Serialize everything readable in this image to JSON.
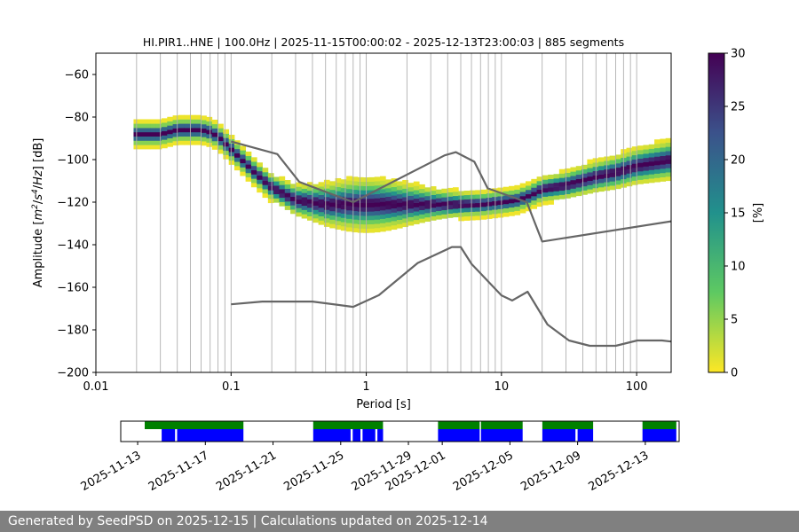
{
  "chart_data": [
    {
      "type": "heatmap",
      "title": "HI.PIR1..HNE | 100.0Hz | 2025-11-15T00:00:02 - 2025-12-13T23:00:03 | 885 segments",
      "xlabel": "Period [s]",
      "ylabel_parts": [
        "Amplitude [",
        "m",
        "2",
        "/",
        "s",
        "4",
        "/",
        "Hz",
        "] [dB]"
      ],
      "xscale": "log",
      "xlim": [
        0.01,
        180
      ],
      "ylim": [
        -200,
        -50
      ],
      "x_ticks": [
        {
          "value": 0.01,
          "label": "0.01"
        },
        {
          "value": 0.1,
          "label": "0.1"
        },
        {
          "value": 1,
          "label": "1"
        },
        {
          "value": 10,
          "label": "10"
        },
        {
          "value": 100,
          "label": "100"
        }
      ],
      "y_ticks": [
        {
          "value": -200,
          "label": "−200"
        },
        {
          "value": -180,
          "label": "−180"
        },
        {
          "value": -160,
          "label": "−160"
        },
        {
          "value": -140,
          "label": "−140"
        },
        {
          "value": -120,
          "label": "−120"
        },
        {
          "value": -100,
          "label": "−100"
        },
        {
          "value": -80,
          "label": "−80"
        },
        {
          "value": -60,
          "label": "−60"
        }
      ],
      "grid": "vertical",
      "grid_periods": [
        0.02,
        0.03,
        0.04,
        0.05,
        0.06,
        0.07,
        0.08,
        0.09,
        0.2,
        0.3,
        0.4,
        0.5,
        0.6,
        0.7,
        0.8,
        0.9,
        2,
        3,
        4,
        5,
        6,
        7,
        8,
        9,
        20,
        30,
        40,
        50,
        60,
        70,
        80,
        90
      ],
      "colorbar": {
        "label": "[%]",
        "range": [
          0,
          30
        ],
        "colormap": [
          "#fde725",
          "#5ec962",
          "#21918c",
          "#3b528b",
          "#440154"
        ],
        "ticks": [
          {
            "value": 0,
            "label": "0"
          },
          {
            "value": 5,
            "label": "5"
          },
          {
            "value": 10,
            "label": "10"
          },
          {
            "value": 15,
            "label": "15"
          },
          {
            "value": 20,
            "label": "20"
          },
          {
            "value": 25,
            "label": "25"
          },
          {
            "value": 30,
            "label": "30"
          }
        ]
      },
      "mode_curve": {
        "x": [
          0.019,
          0.03,
          0.04,
          0.05,
          0.06,
          0.07,
          0.08,
          0.1,
          0.15,
          0.2,
          0.3,
          0.5,
          0.7,
          1.0,
          1.5,
          2,
          3,
          5,
          7,
          10,
          13,
          16,
          20,
          30,
          50,
          70,
          100,
          180
        ],
        "y": [
          -88,
          -88,
          -86,
          -86,
          -86,
          -87,
          -89,
          -95,
          -106,
          -113,
          -119,
          -121,
          -121,
          -121,
          -121,
          -121,
          -121,
          -121,
          -121,
          -120,
          -119,
          -117,
          -114,
          -112,
          -108,
          -106,
          -103,
          -100
        ]
      },
      "noise_models": [
        {
          "x": [
            0.1,
            0.17,
            0.4,
            0.8,
            1.24,
            2.4,
            4.3,
            5.0,
            6.0,
            10,
            12,
            15.6,
            21.9,
            31.6,
            45,
            70,
            101,
            154,
            180
          ],
          "y": [
            -168,
            -166.7,
            -166.7,
            -169.2,
            -163.7,
            -148.6,
            -141.1,
            -141.1,
            -149.0,
            -163.8,
            -166.2,
            -162.1,
            -177.5,
            -185.0,
            -187.5,
            -187.5,
            -185.0,
            -185.0,
            -185.5
          ]
        },
        {
          "x": [
            0.1,
            0.22,
            0.32,
            0.8,
            3.8,
            4.6,
            6.3,
            7.9,
            15.4,
            20.0,
            180
          ],
          "y": [
            -91.5,
            -97.4,
            -110.5,
            -120.0,
            -98.0,
            -96.5,
            -101.0,
            -113.5,
            -120.0,
            -138.5,
            -129.0
          ]
        }
      ]
    },
    {
      "type": "timeline",
      "date_ticks": [
        "2025-11-13",
        "2025-11-17",
        "2025-11-21",
        "2025-11-25",
        "2025-11-29",
        "2025-12-01",
        "2025-12-05",
        "2025-12-09",
        "2025-12-13"
      ],
      "xlim": [
        "2025-11-12",
        "2025-12-15"
      ],
      "colors": {
        "data": "#008000",
        "psd": "#0000ff"
      },
      "data_spans": [
        [
          "2025-11-13T10:00",
          "2025-11-19T06:00"
        ],
        [
          "2025-11-23T09:00",
          "2025-11-27T12:00"
        ],
        [
          "2025-11-30T18:00",
          "2025-12-03T05:00"
        ],
        [
          "2025-12-03T07:00",
          "2025-12-05T18:00"
        ],
        [
          "2025-12-06T22:00",
          "2025-12-09T22:00"
        ],
        [
          "2025-12-12T20:00",
          "2025-12-14T20:00"
        ]
      ],
      "psd_spans": [
        [
          "2025-11-14T10:00",
          "2025-11-15T05:00"
        ],
        [
          "2025-11-15T08:00",
          "2025-11-19T06:00"
        ],
        [
          "2025-11-23T09:00",
          "2025-11-25T14:00"
        ],
        [
          "2025-11-25T17:00",
          "2025-11-26T04:00"
        ],
        [
          "2025-11-26T07:00",
          "2025-11-27T01:00"
        ],
        [
          "2025-11-27T04:00",
          "2025-11-27T12:00"
        ],
        [
          "2025-11-30T18:00",
          "2025-12-03T05:00"
        ],
        [
          "2025-12-03T07:00",
          "2025-12-05T18:00"
        ],
        [
          "2025-12-06T22:00",
          "2025-12-08T21:00"
        ],
        [
          "2025-12-09T00:00",
          "2025-12-09T22:00"
        ],
        [
          "2025-12-12T20:00",
          "2025-12-14T20:00"
        ]
      ]
    }
  ],
  "footer": {
    "text": "Generated by SeedPSD on 2025-12-15 | Calculations updated on 2025-12-14"
  }
}
